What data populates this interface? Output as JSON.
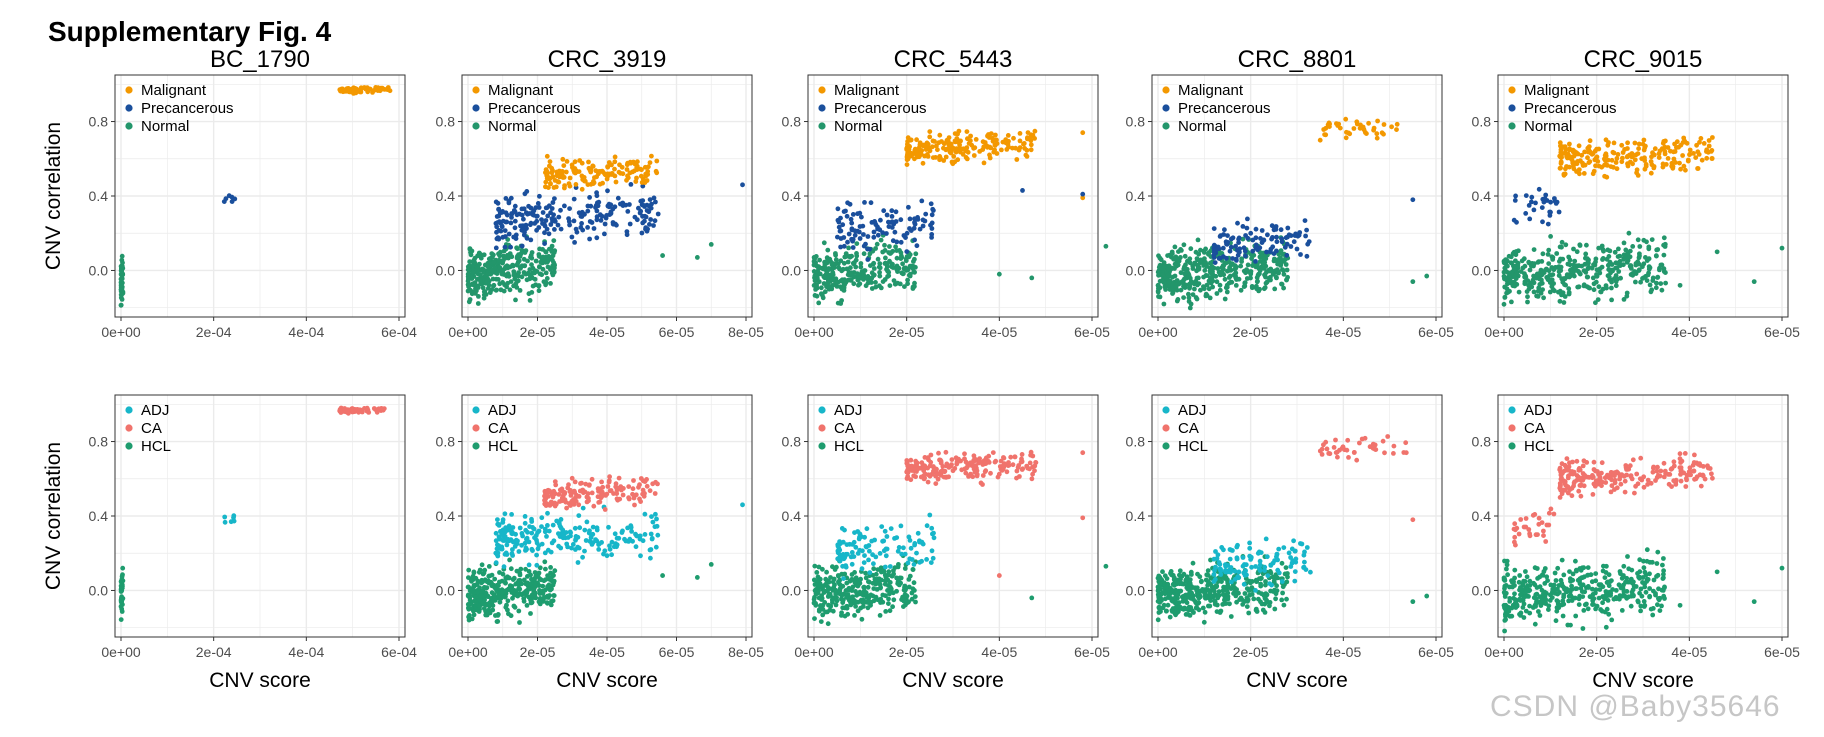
{
  "figure": {
    "title": "Supplementary Fig. 4",
    "watermark": "CSDN @Baby35646"
  },
  "colors": {
    "Malignant": "#f39800",
    "Precancerous": "#1a4f9c",
    "Normal": "#23966b",
    "ADJ": "#17b6c9",
    "CA": "#f0736c",
    "HCL": "#1e9c6e",
    "grid": "#ebebeb",
    "panel_border": "#333333"
  },
  "shared_labels": {
    "y_axis": "CNV correlation",
    "x_axis": "CNV score",
    "y_ticks": [
      "0.0",
      "0.4",
      "0.8"
    ]
  },
  "chart_data": [
    {
      "type": "scatter",
      "row": 1,
      "title": "BC_1790",
      "legend": [
        "Malignant",
        "Precancerous",
        "Normal"
      ],
      "legend_position": "top-left",
      "xlim": [
        0,
        0.0007
      ],
      "xticks": [
        "0e+00",
        "2e-04",
        "4e-04",
        "6e-04"
      ],
      "ylim": [
        -0.25,
        1.05
      ],
      "clusters": [
        {
          "series": "Malignant",
          "x": [
            0.00055,
            0.00068
          ],
          "y": [
            0.95,
            0.99
          ],
          "n": 60
        },
        {
          "series": "Precancerous",
          "x": [
            0.00026,
            0.00029
          ],
          "y": [
            0.34,
            0.43
          ],
          "n": 6
        },
        {
          "series": "Normal",
          "x": [
            0,
            5e-06
          ],
          "y": [
            -0.2,
            0.15
          ],
          "n": 40
        }
      ]
    },
    {
      "type": "scatter",
      "row": 1,
      "title": "CRC_3919",
      "legend": [
        "Malignant",
        "Precancerous",
        "Normal"
      ],
      "legend_position": "top-left",
      "xlim": [
        0,
        8e-05
      ],
      "xticks": [
        "0e+00",
        "2e-05",
        "4e-05",
        "6e-05",
        "8e-05"
      ],
      "ylim": [
        -0.25,
        1.05
      ],
      "clusters": [
        {
          "series": "Normal",
          "x": [
            0,
            2.5e-05
          ],
          "y": [
            -0.2,
            0.2
          ],
          "n": 330
        },
        {
          "series": "Precancerous",
          "x": [
            8e-06,
            5.5e-05
          ],
          "y": [
            0.1,
            0.48
          ],
          "n": 230
        },
        {
          "series": "Malignant",
          "x": [
            2.2e-05,
            5.5e-05
          ],
          "y": [
            0.42,
            0.64
          ],
          "n": 150
        }
      ],
      "outliers": [
        {
          "series": "Precancerous",
          "x": 7.9e-05,
          "y": 0.46
        },
        {
          "series": "Normal",
          "x": 5.6e-05,
          "y": 0.08
        },
        {
          "series": "Normal",
          "x": 7e-05,
          "y": 0.14
        },
        {
          "series": "Normal",
          "x": 6.6e-05,
          "y": 0.07
        }
      ]
    },
    {
      "type": "scatter",
      "row": 1,
      "title": "CRC_5443",
      "legend": [
        "Malignant",
        "Precancerous",
        "Normal"
      ],
      "legend_position": "top-left",
      "xlim": [
        0,
        6e-05
      ],
      "xticks": [
        "0e+00",
        "2e-05",
        "4e-05",
        "6e-05"
      ],
      "ylim": [
        -0.25,
        1.05
      ],
      "clusters": [
        {
          "series": "Normal",
          "x": [
            0,
            2.2e-05
          ],
          "y": [
            -0.2,
            0.2
          ],
          "n": 300
        },
        {
          "series": "Precancerous",
          "x": [
            5e-06,
            2.6e-05
          ],
          "y": [
            0.05,
            0.42
          ],
          "n": 110
        },
        {
          "series": "Malignant",
          "x": [
            2e-05,
            4.8e-05
          ],
          "y": [
            0.55,
            0.78
          ],
          "n": 200
        }
      ],
      "outliers": [
        {
          "series": "Malignant",
          "x": 5.8e-05,
          "y": 0.74
        },
        {
          "series": "Malignant",
          "x": 5.8e-05,
          "y": 0.39
        },
        {
          "series": "Precancerous",
          "x": 4.5e-05,
          "y": 0.43
        },
        {
          "series": "Precancerous",
          "x": 5.8e-05,
          "y": 0.41
        },
        {
          "series": "Normal",
          "x": 4e-05,
          "y": -0.02
        },
        {
          "series": "Normal",
          "x": 4.7e-05,
          "y": -0.04
        },
        {
          "series": "Normal",
          "x": 6.3e-05,
          "y": 0.13
        }
      ]
    },
    {
      "type": "scatter",
      "row": 1,
      "title": "CRC_8801",
      "legend": [
        "Malignant",
        "Precancerous",
        "Normal"
      ],
      "legend_position": "top-left",
      "xlim": [
        0,
        6e-05
      ],
      "xticks": [
        "0e+00",
        "2e-05",
        "4e-05",
        "6e-05"
      ],
      "ylim": [
        -0.25,
        1.05
      ],
      "clusters": [
        {
          "series": "Normal",
          "x": [
            0,
            2.8e-05
          ],
          "y": [
            -0.2,
            0.2
          ],
          "n": 420
        },
        {
          "series": "Precancerous",
          "x": [
            1.2e-05,
            3.3e-05
          ],
          "y": [
            -0.02,
            0.33
          ],
          "n": 110
        },
        {
          "series": "Malignant",
          "x": [
            3.5e-05,
            5.4e-05
          ],
          "y": [
            0.68,
            0.85
          ],
          "n": 40
        }
      ],
      "outliers": [
        {
          "series": "Precancerous",
          "x": 5.5e-05,
          "y": 0.38
        },
        {
          "series": "Normal",
          "x": 5.5e-05,
          "y": -0.06
        },
        {
          "series": "Normal",
          "x": 5.8e-05,
          "y": -0.03
        }
      ]
    },
    {
      "type": "scatter",
      "row": 1,
      "title": "CRC_9015",
      "legend": [
        "Malignant",
        "Precancerous",
        "Normal"
      ],
      "legend_position": "top-left",
      "xlim": [
        0,
        6e-05
      ],
      "xticks": [
        "0e+00",
        "2e-05",
        "4e-05",
        "6e-05"
      ],
      "ylim": [
        -0.25,
        1.05
      ],
      "clusters": [
        {
          "series": "Normal",
          "x": [
            0,
            3.5e-05
          ],
          "y": [
            -0.22,
            0.22
          ],
          "n": 400
        },
        {
          "series": "Precancerous",
          "x": [
            2e-06,
            1.2e-05
          ],
          "y": [
            0.2,
            0.5
          ],
          "n": 30
        },
        {
          "series": "Malignant",
          "x": [
            1.2e-05,
            4.5e-05
          ],
          "y": [
            0.48,
            0.75
          ],
          "n": 220
        }
      ],
      "outliers": [
        {
          "series": "Normal",
          "x": 3.8e-05,
          "y": -0.08
        },
        {
          "series": "Normal",
          "x": 4.6e-05,
          "y": 0.1
        },
        {
          "series": "Normal",
          "x": 5.4e-05,
          "y": -0.06
        },
        {
          "series": "Normal",
          "x": 6e-05,
          "y": 0.12
        }
      ]
    },
    {
      "type": "scatter",
      "row": 2,
      "title": "",
      "legend": [
        "ADJ",
        "CA",
        "HCL"
      ],
      "legend_position": "top-left",
      "xlim": [
        0,
        0.0007
      ],
      "xticks": [
        "0e+00",
        "2e-04",
        "4e-04",
        "6e-04"
      ],
      "ylim": [
        -0.25,
        1.05
      ],
      "clusters": [
        {
          "series": "CA",
          "x": [
            0.00055,
            0.00068
          ],
          "y": [
            0.95,
            0.99
          ],
          "n": 60
        },
        {
          "series": "ADJ",
          "x": [
            0.00026,
            0.00029
          ],
          "y": [
            0.34,
            0.43
          ],
          "n": 6
        },
        {
          "series": "HCL",
          "x": [
            0,
            5e-06
          ],
          "y": [
            -0.2,
            0.15
          ],
          "n": 40
        }
      ]
    },
    {
      "type": "scatter",
      "row": 2,
      "title": "",
      "legend": [
        "ADJ",
        "CA",
        "HCL"
      ],
      "legend_position": "top-left",
      "xlim": [
        0,
        8e-05
      ],
      "xticks": [
        "0e+00",
        "2e-05",
        "4e-05",
        "6e-05",
        "8e-05"
      ],
      "ylim": [
        -0.25,
        1.05
      ],
      "clusters": [
        {
          "series": "HCL",
          "x": [
            0,
            2.5e-05
          ],
          "y": [
            -0.2,
            0.2
          ],
          "n": 330
        },
        {
          "series": "ADJ",
          "x": [
            8e-06,
            5.5e-05
          ],
          "y": [
            0.1,
            0.48
          ],
          "n": 230
        },
        {
          "series": "CA",
          "x": [
            2.2e-05,
            5.5e-05
          ],
          "y": [
            0.42,
            0.64
          ],
          "n": 150
        }
      ],
      "outliers": [
        {
          "series": "ADJ",
          "x": 7.9e-05,
          "y": 0.46
        },
        {
          "series": "HCL",
          "x": 5.6e-05,
          "y": 0.08
        },
        {
          "series": "HCL",
          "x": 7e-05,
          "y": 0.14
        },
        {
          "series": "HCL",
          "x": 6.6e-05,
          "y": 0.07
        }
      ]
    },
    {
      "type": "scatter",
      "row": 2,
      "title": "",
      "legend": [
        "ADJ",
        "CA",
        "HCL"
      ],
      "legend_position": "top-left",
      "xlim": [
        0,
        6e-05
      ],
      "xticks": [
        "0e+00",
        "2e-05",
        "4e-05",
        "6e-05"
      ],
      "ylim": [
        -0.25,
        1.05
      ],
      "clusters": [
        {
          "series": "HCL",
          "x": [
            0,
            2.2e-05
          ],
          "y": [
            -0.2,
            0.2
          ],
          "n": 300
        },
        {
          "series": "ADJ",
          "x": [
            5e-06,
            2.6e-05
          ],
          "y": [
            0.05,
            0.42
          ],
          "n": 110
        },
        {
          "series": "CA",
          "x": [
            2e-05,
            4.8e-05
          ],
          "y": [
            0.55,
            0.78
          ],
          "n": 200
        }
      ],
      "outliers": [
        {
          "series": "CA",
          "x": 5.8e-05,
          "y": 0.74
        },
        {
          "series": "CA",
          "x": 5.8e-05,
          "y": 0.39
        },
        {
          "series": "CA",
          "x": 4e-05,
          "y": 0.08
        },
        {
          "series": "HCL",
          "x": 4.7e-05,
          "y": -0.04
        },
        {
          "series": "HCL",
          "x": 6.3e-05,
          "y": 0.13
        }
      ]
    },
    {
      "type": "scatter",
      "row": 2,
      "title": "",
      "legend": [
        "ADJ",
        "CA",
        "HCL"
      ],
      "legend_position": "top-left",
      "xlim": [
        0,
        6e-05
      ],
      "xticks": [
        "0e+00",
        "2e-05",
        "4e-05",
        "6e-05"
      ],
      "ylim": [
        -0.25,
        1.05
      ],
      "clusters": [
        {
          "series": "HCL",
          "x": [
            0,
            2.8e-05
          ],
          "y": [
            -0.2,
            0.2
          ],
          "n": 420
        },
        {
          "series": "ADJ",
          "x": [
            1.2e-05,
            3.3e-05
          ],
          "y": [
            -0.02,
            0.33
          ],
          "n": 110
        },
        {
          "series": "CA",
          "x": [
            3.5e-05,
            5.4e-05
          ],
          "y": [
            0.68,
            0.85
          ],
          "n": 40
        }
      ],
      "outliers": [
        {
          "series": "CA",
          "x": 5.5e-05,
          "y": 0.38
        },
        {
          "series": "HCL",
          "x": 5.5e-05,
          "y": -0.06
        },
        {
          "series": "HCL",
          "x": 5.8e-05,
          "y": -0.03
        }
      ]
    },
    {
      "type": "scatter",
      "row": 2,
      "title": "",
      "legend": [
        "ADJ",
        "CA",
        "HCL"
      ],
      "legend_position": "top-left",
      "xlim": [
        0,
        6e-05
      ],
      "xticks": [
        "0e+00",
        "2e-05",
        "4e-05",
        "6e-05"
      ],
      "ylim": [
        -0.25,
        1.05
      ],
      "clusters": [
        {
          "series": "HCL",
          "x": [
            0,
            3.5e-05
          ],
          "y": [
            -0.22,
            0.22
          ],
          "n": 400
        },
        {
          "series": "CA",
          "x": [
            2e-06,
            1.2e-05
          ],
          "y": [
            0.2,
            0.5
          ],
          "n": 30
        },
        {
          "series": "CA",
          "x": [
            1.2e-05,
            4.5e-05
          ],
          "y": [
            0.48,
            0.75
          ],
          "n": 220
        }
      ],
      "outliers": [
        {
          "series": "HCL",
          "x": 3.8e-05,
          "y": -0.08
        },
        {
          "series": "HCL",
          "x": 4.6e-05,
          "y": 0.1
        },
        {
          "series": "HCL",
          "x": 5.4e-05,
          "y": -0.06
        },
        {
          "series": "HCL",
          "x": 6e-05,
          "y": 0.12
        }
      ]
    }
  ]
}
